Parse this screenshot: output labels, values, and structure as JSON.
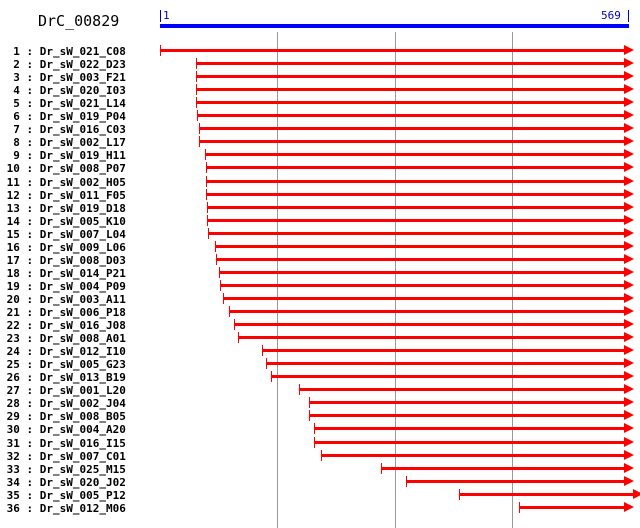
{
  "header": {
    "title": "DrC_00829",
    "ruler_start": "1",
    "ruler_end": "569",
    "ruler_color": "#0000ff"
  },
  "colors": {
    "track": "#ff0000",
    "grid": "#999999"
  },
  "rows": [
    {
      "num": "1",
      "name": "Dr_sW_021_C08",
      "start": 1,
      "end": 569
    },
    {
      "num": "2",
      "name": "Dr_sW_022_D23",
      "start": 45,
      "end": 569
    },
    {
      "num": "3",
      "name": "Dr_sW_003_F21",
      "start": 45,
      "end": 569
    },
    {
      "num": "4",
      "name": "Dr_sW_020_I03",
      "start": 45,
      "end": 569
    },
    {
      "num": "5",
      "name": "Dr_sW_021_L14",
      "start": 45,
      "end": 569
    },
    {
      "num": "6",
      "name": "Dr_sW_019_P04",
      "start": 46,
      "end": 569
    },
    {
      "num": "7",
      "name": "Dr_sW_016_C03",
      "start": 49,
      "end": 569
    },
    {
      "num": "8",
      "name": "Dr_sW_002_L17",
      "start": 49,
      "end": 569
    },
    {
      "num": "9",
      "name": "Dr_sW_019_H11",
      "start": 56,
      "end": 569
    },
    {
      "num": "10",
      "name": "Dr_sW_008_P07",
      "start": 57,
      "end": 569
    },
    {
      "num": "11",
      "name": "Dr_sW_002_H05",
      "start": 57,
      "end": 569
    },
    {
      "num": "12",
      "name": "Dr_sW_011_F05",
      "start": 57,
      "end": 569
    },
    {
      "num": "13",
      "name": "Dr_sW_019_D18",
      "start": 58,
      "end": 569
    },
    {
      "num": "14",
      "name": "Dr_sW_005_K10",
      "start": 59,
      "end": 569
    },
    {
      "num": "15",
      "name": "Dr_sW_007_L04",
      "start": 60,
      "end": 569
    },
    {
      "num": "16",
      "name": "Dr_sW_009_L06",
      "start": 68,
      "end": 569
    },
    {
      "num": "17",
      "name": "Dr_sW_008_D03",
      "start": 69,
      "end": 569
    },
    {
      "num": "18",
      "name": "Dr_sW_014_P21",
      "start": 73,
      "end": 569
    },
    {
      "num": "19",
      "name": "Dr_sW_004_P09",
      "start": 75,
      "end": 569
    },
    {
      "num": "20",
      "name": "Dr_sW_003_A11",
      "start": 78,
      "end": 569
    },
    {
      "num": "21",
      "name": "Dr_sW_006_P18",
      "start": 86,
      "end": 569
    },
    {
      "num": "22",
      "name": "Dr_sW_016_J08",
      "start": 91,
      "end": 569
    },
    {
      "num": "23",
      "name": "Dr_sW_008_A01",
      "start": 96,
      "end": 569
    },
    {
      "num": "24",
      "name": "Dr_sW_012_I10",
      "start": 126,
      "end": 569
    },
    {
      "num": "25",
      "name": "Dr_sW_005_G23",
      "start": 131,
      "end": 569
    },
    {
      "num": "26",
      "name": "Dr_sW_013_B19",
      "start": 137,
      "end": 569
    },
    {
      "num": "27",
      "name": "Dr_sW_001_L20",
      "start": 171,
      "end": 569
    },
    {
      "num": "28",
      "name": "Dr_sW_002_J04",
      "start": 183,
      "end": 569
    },
    {
      "num": "29",
      "name": "Dr_sW_008_B05",
      "start": 184,
      "end": 569
    },
    {
      "num": "30",
      "name": "Dr_sW_004_A20",
      "start": 189,
      "end": 569
    },
    {
      "num": "31",
      "name": "Dr_sW_016_I15",
      "start": 189,
      "end": 569
    },
    {
      "num": "32",
      "name": "Dr_sW_007_C01",
      "start": 198,
      "end": 569
    },
    {
      "num": "33",
      "name": "Dr_sW_025_M15",
      "start": 272,
      "end": 569
    },
    {
      "num": "34",
      "name": "Dr_sW_020_J02",
      "start": 302,
      "end": 569
    },
    {
      "num": "35",
      "name": "Dr_sW_005_P12",
      "start": 367,
      "end": 580
    },
    {
      "num": "36",
      "name": "Dr_sW_012_M06",
      "start": 441,
      "end": 569
    }
  ]
}
